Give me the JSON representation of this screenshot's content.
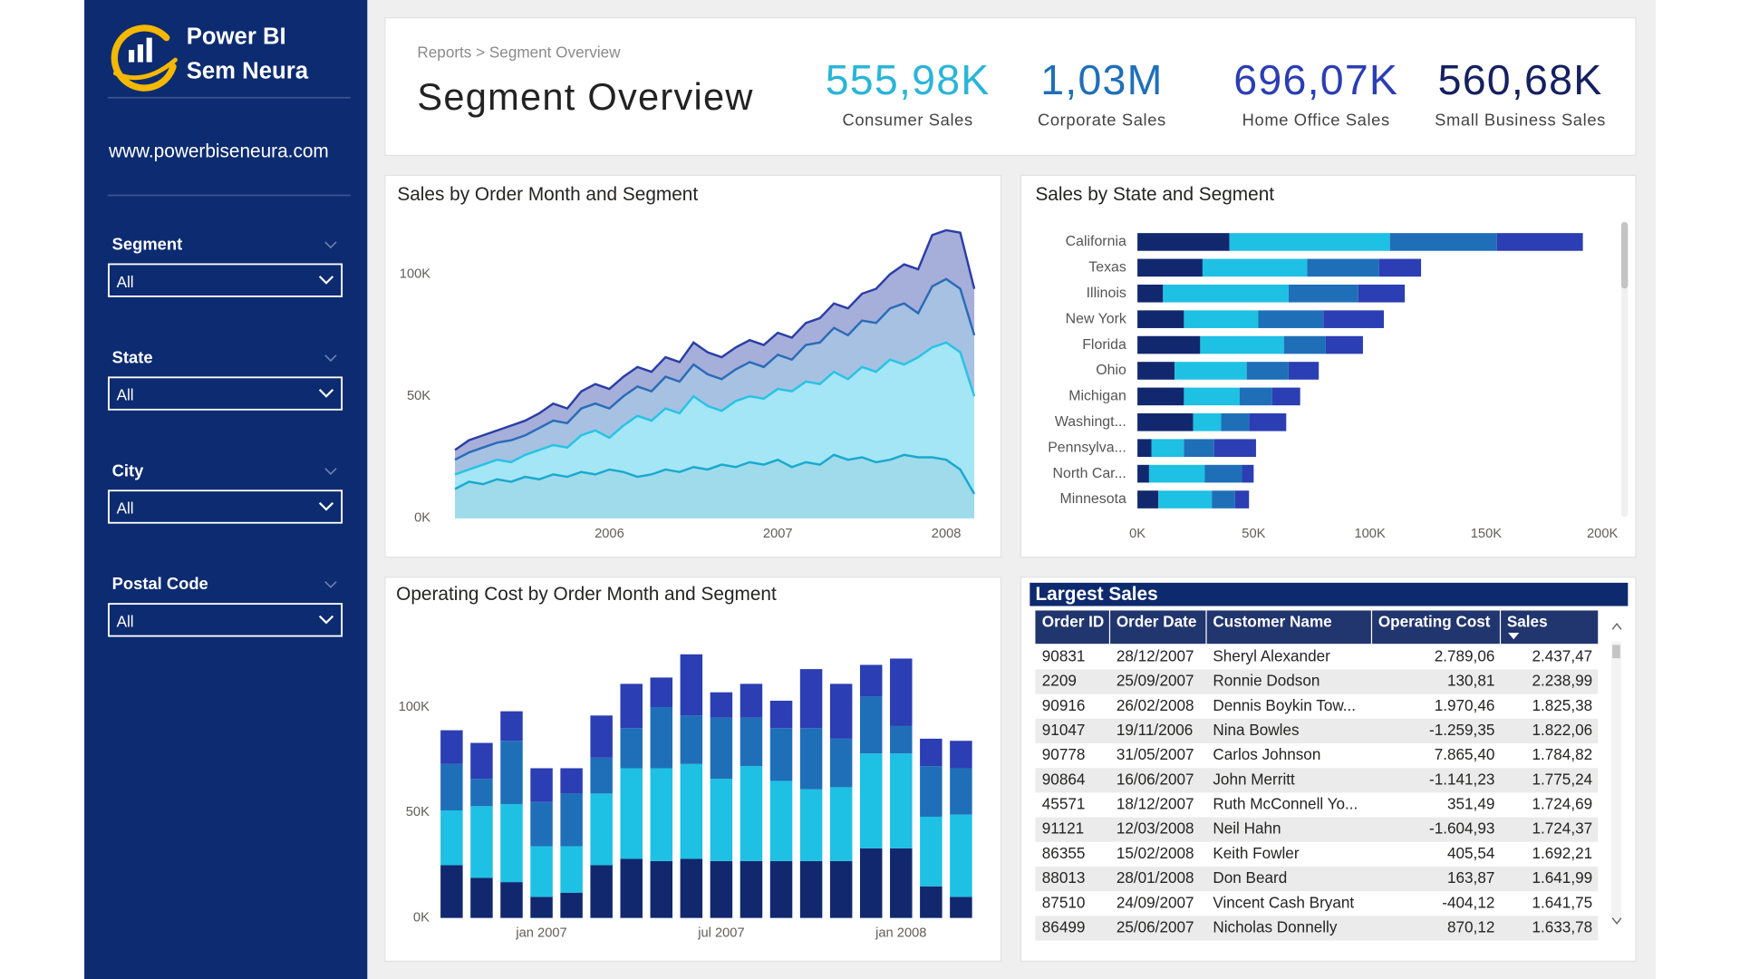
{
  "sidebar": {
    "brand": [
      "Power BI",
      "Sem Neura"
    ],
    "url": "www.powerbiseneura.com",
    "filters": [
      {
        "label": "Segment",
        "value": "All"
      },
      {
        "label": "State",
        "value": "All"
      },
      {
        "label": "City",
        "value": "All"
      },
      {
        "label": "Postal Code",
        "value": "All"
      }
    ]
  },
  "header": {
    "breadcrumb": "Reports > Segment Overview",
    "title": "Segment Overview",
    "kpis": [
      {
        "value": "555,98K",
        "label": "Consumer Sales",
        "color": "#2ab5d8"
      },
      {
        "value": "1,03M",
        "label": "Corporate Sales",
        "color": "#1f6fb8"
      },
      {
        "value": "696,07K",
        "label": "Home Office Sales",
        "color": "#2b3eb3"
      },
      {
        "value": "560,68K",
        "label": "Small Business Sales",
        "color": "#142060"
      }
    ]
  },
  "chart_data": [
    {
      "type": "area",
      "stacked": true,
      "title": "Sales by Order Month and Segment",
      "categories": [
        null,
        null,
        null,
        null,
        null,
        null,
        null,
        null,
        null,
        null,
        null,
        "2006",
        null,
        null,
        null,
        null,
        null,
        null,
        null,
        null,
        null,
        null,
        null,
        "2007",
        null,
        null,
        null,
        null,
        null,
        null,
        null,
        null,
        null,
        null,
        null,
        "2008",
        null,
        null
      ],
      "series": [
        {
          "color": "#1aa9cf",
          "values": [
            12000,
            15000,
            14000,
            16000,
            15000,
            17000,
            16000,
            18000,
            17000,
            19000,
            18000,
            20000,
            19000,
            17000,
            18000,
            20000,
            19000,
            21000,
            20000,
            22000,
            21000,
            23000,
            22000,
            24000,
            21000,
            23000,
            22000,
            26000,
            24000,
            25000,
            23000,
            24000,
            26000,
            25000,
            25000,
            24000,
            20000,
            10000
          ]
        },
        {
          "color": "#27c3e6",
          "values": [
            6000,
            5000,
            8000,
            8000,
            8000,
            9000,
            12000,
            12000,
            12000,
            15000,
            18000,
            13000,
            19000,
            25000,
            22000,
            25000,
            24000,
            29000,
            26000,
            22000,
            27000,
            27000,
            27000,
            29000,
            31000,
            33000,
            33000,
            34000,
            33000,
            37000,
            37000,
            41000,
            37000,
            41000,
            45000,
            48000,
            48000,
            40000
          ]
        },
        {
          "color": "#2a6cb8",
          "values": [
            6000,
            7000,
            7000,
            7000,
            9000,
            8000,
            9000,
            10000,
            10000,
            11000,
            11000,
            12000,
            12000,
            12000,
            12000,
            13000,
            13000,
            13000,
            13000,
            13000,
            13000,
            14000,
            13000,
            14000,
            13000,
            15000,
            17000,
            18000,
            18000,
            19000,
            20000,
            21000,
            25000,
            18000,
            25000,
            26000,
            26000,
            25000
          ]
        },
        {
          "color": "#2b3ea6",
          "values": [
            4000,
            5000,
            5000,
            5000,
            6000,
            6000,
            6000,
            7000,
            6000,
            7000,
            8000,
            8000,
            8000,
            8000,
            8000,
            8000,
            8000,
            9000,
            9000,
            9000,
            9000,
            9000,
            9000,
            9000,
            9000,
            9000,
            10000,
            10000,
            11000,
            11000,
            14000,
            14000,
            16000,
            18000,
            21000,
            20000,
            23000,
            19000
          ]
        }
      ],
      "ylim": [
        0,
        120000
      ],
      "yticks": [
        {
          "value": 0,
          "label": "0K"
        },
        {
          "value": 50000,
          "label": "50K"
        },
        {
          "value": 100000,
          "label": "100K"
        }
      ],
      "grid": false
    },
    {
      "type": "bar",
      "orientation": "horizontal",
      "stacked": true,
      "title": "Sales by State and Segment",
      "categories": [
        "California",
        "Texas",
        "Illinois",
        "New York",
        "Florida",
        "Ohio",
        "Michigan",
        "Washingt...",
        "Pennsylva...",
        "North Car...",
        "Minnesota"
      ],
      "series": [
        {
          "color": "#12286e",
          "values": [
            39600,
            28000,
            11000,
            20000,
            27000,
            16000,
            20000,
            24000,
            6000,
            5000,
            9000
          ]
        },
        {
          "color": "#1ec0e3",
          "values": [
            69000,
            45000,
            54000,
            32000,
            36000,
            31000,
            24000,
            12000,
            14000,
            24000,
            23000
          ]
        },
        {
          "color": "#1f6fb8",
          "values": [
            46000,
            31000,
            30000,
            28000,
            18000,
            18000,
            14000,
            12000,
            13000,
            16000,
            10000
          ]
        },
        {
          "color": "#2b3eb3",
          "values": [
            37000,
            18000,
            20000,
            26000,
            16000,
            13000,
            12000,
            16000,
            18000,
            5000,
            6000
          ]
        }
      ],
      "xlim": [
        0,
        200000
      ],
      "xticks": [
        {
          "value": 0,
          "label": "0K"
        },
        {
          "value": 50000,
          "label": "50K"
        },
        {
          "value": 100000,
          "label": "100K"
        },
        {
          "value": 150000,
          "label": "150K"
        },
        {
          "value": 200000,
          "label": "200K"
        }
      ],
      "grid": false
    },
    {
      "type": "bar",
      "orientation": "vertical",
      "stacked": true,
      "title": "Operating Cost by Order Month and Segment",
      "categories": [
        null,
        null,
        null,
        "jan 2007",
        null,
        null,
        null,
        null,
        null,
        "jul 2007",
        null,
        null,
        null,
        null,
        null,
        "jan 2008",
        null,
        null
      ],
      "series": [
        {
          "color": "#12286e",
          "values": [
            25000,
            19000,
            17000,
            10000,
            12000,
            25000,
            28000,
            27000,
            28000,
            27000,
            27000,
            27000,
            27000,
            27000,
            33000,
            33000,
            15000,
            10000
          ]
        },
        {
          "color": "#1ec0e3",
          "values": [
            26000,
            34000,
            37000,
            24000,
            22000,
            34000,
            43000,
            44000,
            45000,
            39000,
            45000,
            38000,
            34000,
            35000,
            45000,
            45000,
            33000,
            39000
          ]
        },
        {
          "color": "#1f6fb8",
          "values": [
            22000,
            13000,
            30000,
            21000,
            25000,
            17000,
            19000,
            29000,
            23000,
            29000,
            23000,
            25000,
            29000,
            23000,
            27000,
            13000,
            24000,
            22000
          ]
        },
        {
          "color": "#2b3eb3",
          "values": [
            16000,
            17000,
            14000,
            16000,
            12000,
            20000,
            21000,
            14000,
            29000,
            12000,
            16000,
            13000,
            28000,
            26000,
            15000,
            32000,
            13000,
            13000
          ]
        }
      ],
      "ylim": [
        0,
        130000
      ],
      "yticks": [
        {
          "value": 0,
          "label": "0K"
        },
        {
          "value": 50000,
          "label": "50K"
        },
        {
          "value": 100000,
          "label": "100K"
        }
      ],
      "grid": false
    }
  ],
  "table": {
    "title": "Largest Sales",
    "columns": [
      "Order ID",
      "Order Date",
      "Customer Name",
      "Operating Cost",
      "Sales"
    ],
    "rows": [
      [
        "90831",
        "28/12/2007",
        "Sheryl Alexander",
        "2.789,06",
        "2.437,47"
      ],
      [
        "2209",
        "25/09/2007",
        "Ronnie Dodson",
        "130,81",
        "2.238,99"
      ],
      [
        "90916",
        "26/02/2008",
        "Dennis Boykin Tow...",
        "1.970,46",
        "1.825,38"
      ],
      [
        "91047",
        "19/11/2006",
        "Nina Bowles",
        "-1.259,35",
        "1.822,06"
      ],
      [
        "90778",
        "31/05/2007",
        "Carlos Johnson",
        "7.865,40",
        "1.784,82"
      ],
      [
        "90864",
        "16/06/2007",
        "John Merritt",
        "-1.141,23",
        "1.775,24"
      ],
      [
        "45571",
        "18/12/2007",
        "Ruth McConnell Yo...",
        "351,49",
        "1.724,69"
      ],
      [
        "91121",
        "12/03/2008",
        "Neil Hahn",
        "-1.604,93",
        "1.724,37"
      ],
      [
        "86355",
        "15/02/2008",
        "Keith Fowler",
        "405,54",
        "1.692,21"
      ],
      [
        "88013",
        "28/01/2008",
        "Don Beard",
        "163,87",
        "1.641,99"
      ],
      [
        "87510",
        "24/09/2007",
        "Vincent Cash Bryant",
        "-404,12",
        "1.641,75"
      ],
      [
        "86499",
        "25/06/2007",
        "Nicholas Donnelly",
        "870,12",
        "1.633,78"
      ]
    ]
  }
}
